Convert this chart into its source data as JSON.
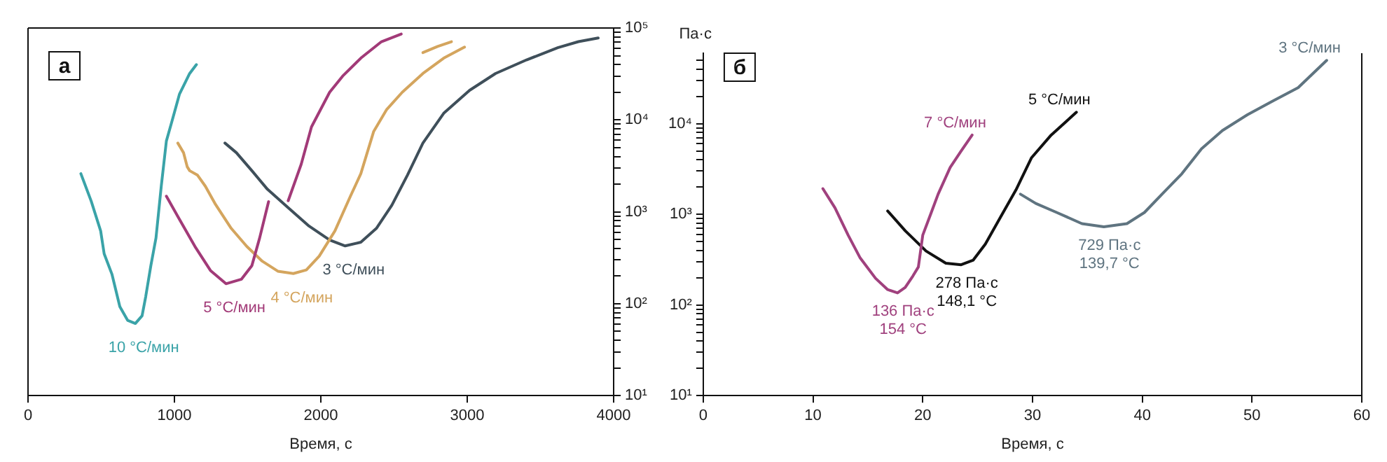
{
  "chart_data": [
    {
      "type": "line",
      "title": "а",
      "xlabel": "Время, с",
      "xlim": [
        0,
        4000
      ],
      "xticks": [
        0,
        1000,
        2000,
        3000,
        4000
      ],
      "y2lim": [
        10,
        100000
      ],
      "log": "y2",
      "y2ticks": [
        {
          "value": 10,
          "label": "10¹"
        },
        {
          "value": 20,
          "label": null
        },
        {
          "value": 30,
          "label": null
        },
        {
          "value": 40,
          "label": null
        },
        {
          "value": 50,
          "label": null
        },
        {
          "value": 60,
          "label": null
        },
        {
          "value": 70,
          "label": null
        },
        {
          "value": 80,
          "label": null
        },
        {
          "value": 90,
          "label": null
        },
        {
          "value": 100,
          "label": "10²"
        },
        {
          "value": 200,
          "label": null
        },
        {
          "value": 300,
          "label": null
        },
        {
          "value": 400,
          "label": null
        },
        {
          "value": 500,
          "label": null
        },
        {
          "value": 600,
          "label": null
        },
        {
          "value": 700,
          "label": null
        },
        {
          "value": 800,
          "label": null
        },
        {
          "value": 900,
          "label": null
        },
        {
          "value": 1000,
          "label": "10³"
        },
        {
          "value": 2000,
          "label": null
        },
        {
          "value": 3000,
          "label": null
        },
        {
          "value": 4000,
          "label": null
        },
        {
          "value": 5000,
          "label": null
        },
        {
          "value": 6000,
          "label": null
        },
        {
          "value": 7000,
          "label": null
        },
        {
          "value": 8000,
          "label": null
        },
        {
          "value": 9000,
          "label": null
        },
        {
          "value": 10000,
          "label": "10⁴"
        },
        {
          "value": 20000,
          "label": null
        },
        {
          "value": 30000,
          "label": null
        },
        {
          "value": 40000,
          "label": null
        },
        {
          "value": 50000,
          "label": null
        },
        {
          "value": 60000,
          "label": null
        },
        {
          "value": 70000,
          "label": null
        },
        {
          "value": 80000,
          "label": null
        },
        {
          "value": 90000,
          "label": null
        },
        {
          "value": 100000,
          "label": "10⁵"
        }
      ],
      "grid": false,
      "legend": false,
      "marker": "none",
      "line_style": "solid",
      "series": [
        {
          "name": "10 °C/мин",
          "axis": "y2",
          "color": "#3aa3a8",
          "x": [
            361,
            432,
            496,
            520,
            573,
            627,
            680,
            733,
            779,
            804,
            839,
            874,
            910,
            945,
            981,
            1034,
            1104,
            1150
          ],
          "values": [
            2600,
            1300,
            620,
            350,
            210,
            93,
            66,
            61,
            74,
            120,
            260,
            520,
            1900,
            5900,
            9400,
            19000,
            32000,
            40000
          ]
        },
        {
          "name": "5 °C/мин",
          "axis": "y2",
          "color": "#a23a78",
          "x": [
            945,
            1034,
            1140,
            1246,
            1352,
            1458,
            1529,
            1582,
            1643,
            1700,
            1777,
            1866,
            1936,
            2060,
            2149,
            2273,
            2414,
            2549
          ],
          "values": [
            1480,
            830,
            420,
            230,
            165,
            185,
            260,
            520,
            1290,
            null,
            1320,
            3300,
            8400,
            20000,
            30000,
            47000,
            71000,
            86000
          ]
        },
        {
          "name": "4 °C/мин",
          "axis": "y2",
          "color": "#d4a55e",
          "x": [
            1023,
            1062,
            1087,
            1104,
            1158,
            1211,
            1281,
            1388,
            1494,
            1600,
            1706,
            1812,
            1901,
            1989,
            2096,
            2202,
            2273,
            2361,
            2450,
            2556,
            2697,
            2839,
            2981
          ],
          "values": [
            5600,
            4400,
            3100,
            2800,
            2500,
            1900,
            1200,
            660,
            420,
            290,
            226,
            213,
            233,
            330,
            620,
            1480,
            2600,
            7500,
            13000,
            20000,
            32000,
            47000,
            62000
          ]
        },
        {
          "axis": "y2",
          "color": "#d4a55e",
          "x": [
            2697,
            2797,
            2892
          ],
          "values": [
            54000,
            63000,
            71000
          ]
        },
        {
          "name": "3 °C/мин",
          "axis": "y2",
          "color": "#3f4f5a",
          "x": [
            1345,
            1423,
            1529,
            1635,
            1777,
            1919,
            2060,
            2166,
            2273,
            2379,
            2485,
            2591,
            2697,
            2839,
            3016,
            3193,
            3405,
            3618,
            3759,
            3894
          ],
          "values": [
            5600,
            4400,
            2800,
            1760,
            1110,
            700,
            494,
            426,
            467,
            660,
            1180,
            2500,
            5600,
            11800,
            21000,
            32000,
            45000,
            61000,
            71000,
            78000
          ]
        }
      ]
    },
    {
      "type": "line",
      "title": "б",
      "xlabel": "Время, с",
      "ylabel": "Па·с",
      "xlim": [
        0,
        60
      ],
      "xticks": [
        0,
        10,
        20,
        30,
        40,
        50,
        60
      ],
      "ylim": [
        10,
        60000
      ],
      "log": "y",
      "yticks": [
        {
          "value": 10,
          "label": "10¹"
        },
        {
          "value": 20,
          "label": null
        },
        {
          "value": 30,
          "label": null
        },
        {
          "value": 40,
          "label": null
        },
        {
          "value": 50,
          "label": null
        },
        {
          "value": 60,
          "label": null
        },
        {
          "value": 70,
          "label": null
        },
        {
          "value": 80,
          "label": null
        },
        {
          "value": 90,
          "label": null
        },
        {
          "value": 100,
          "label": "10²"
        },
        {
          "value": 200,
          "label": null
        },
        {
          "value": 300,
          "label": null
        },
        {
          "value": 400,
          "label": null
        },
        {
          "value": 500,
          "label": null
        },
        {
          "value": 600,
          "label": null
        },
        {
          "value": 700,
          "label": null
        },
        {
          "value": 800,
          "label": null
        },
        {
          "value": 900,
          "label": null
        },
        {
          "value": 1000,
          "label": "10³"
        },
        {
          "value": 2000,
          "label": null
        },
        {
          "value": 3000,
          "label": null
        },
        {
          "value": 4000,
          "label": null
        },
        {
          "value": 5000,
          "label": null
        },
        {
          "value": 6000,
          "label": null
        },
        {
          "value": 7000,
          "label": null
        },
        {
          "value": 8000,
          "label": null
        },
        {
          "value": 9000,
          "label": null
        },
        {
          "value": 10000,
          "label": "10⁴"
        },
        {
          "value": 20000,
          "label": null
        },
        {
          "value": 30000,
          "label": null
        },
        {
          "value": 40000,
          "label": null
        },
        {
          "value": 50000,
          "label": null
        }
      ],
      "grid": false,
      "legend": false,
      "marker": "none",
      "line_style": "solid",
      "series": [
        {
          "name": "7 °C/мин",
          "color": "#a0417e",
          "x": [
            10.9,
            12,
            13.2,
            14.3,
            15.7,
            16.8,
            17.7,
            18.4,
            19.1,
            19.6,
            20,
            20.7,
            21.4,
            22.5,
            23.5,
            24.5
          ],
          "values": [
            1920,
            1180,
            590,
            330,
            197,
            148,
            136,
            156,
            209,
            263,
            590,
            990,
            1670,
            3300,
            5000,
            7500
          ]
        },
        {
          "name": "5 °C/мин",
          "color": "#111111",
          "x": [
            16.8,
            18.4,
            20.3,
            22.1,
            23.5,
            24.6,
            25.7,
            27.1,
            28.5,
            29.9,
            31.7,
            34
          ],
          "values": [
            1090,
            660,
            394,
            289,
            278,
            313,
            469,
            940,
            1870,
            4200,
            7500,
            13400
          ]
        },
        {
          "name": "3 °C/мин",
          "color": "#5f7480",
          "x": [
            28.9,
            30.3,
            32.2,
            34.5,
            36.5,
            38.6,
            40.2,
            41.8,
            43.6,
            45.4,
            47.3,
            49.6,
            51.9,
            54.2,
            56.8
          ],
          "values": [
            1670,
            1320,
            1050,
            790,
            729,
            790,
            1050,
            1670,
            2800,
            5300,
            8400,
            12600,
            17800,
            25000,
            50000
          ]
        }
      ],
      "annotations": [
        {
          "text": "136 Па·с\n154 °C",
          "x": 17.7,
          "y": 136
        },
        {
          "text": "278 Па·с\n148,1 °C",
          "x": 23.5,
          "y": 278
        },
        {
          "text": "729 Па·с\n139,7 °C",
          "x": 36.5,
          "y": 729
        }
      ]
    }
  ]
}
